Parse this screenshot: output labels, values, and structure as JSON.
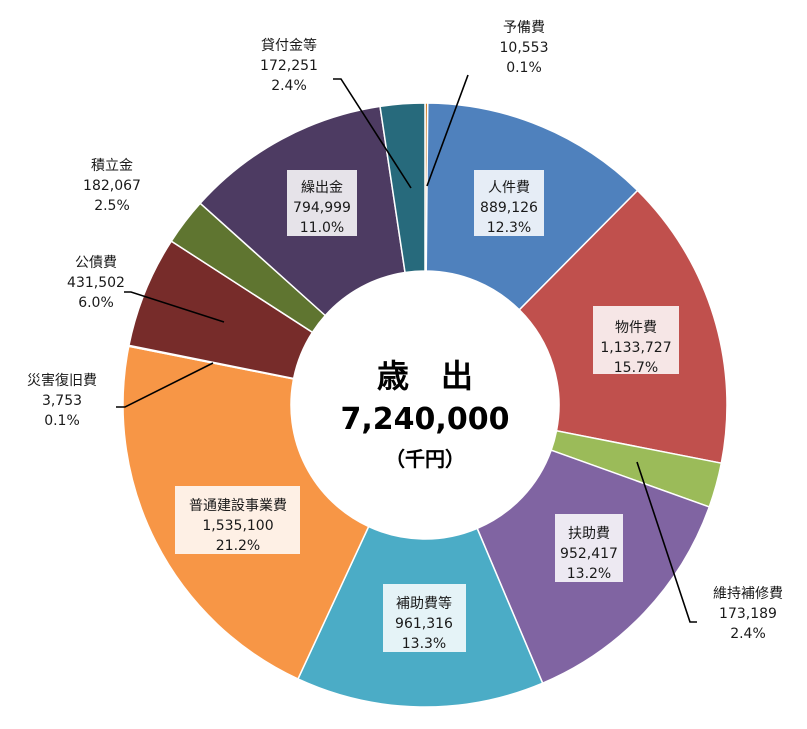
{
  "chart_data": {
    "type": "pie",
    "style": "donut",
    "center": {
      "title": "歳　出",
      "total": "7,240,000",
      "unit": "（千円）"
    },
    "slices": [
      {
        "label": "予備費",
        "value": 10553,
        "value_text": "10,553",
        "percent": "0.1%",
        "color": "#D07E2A"
      },
      {
        "label": "人件費",
        "value": 889126,
        "value_text": "889,126",
        "percent": "12.3%",
        "color": "#4F81BD"
      },
      {
        "label": "物件費",
        "value": 1133727,
        "value_text": "1,133,727",
        "percent": "15.7%",
        "color": "#C0504D"
      },
      {
        "label": "維持補修費",
        "value": 173189,
        "value_text": "173,189",
        "percent": "2.4%",
        "color": "#9BBB59"
      },
      {
        "label": "扶助費",
        "value": 952417,
        "value_text": "952,417",
        "percent": "13.2%",
        "color": "#8064A2"
      },
      {
        "label": "補助費等",
        "value": 961316,
        "value_text": "961,316",
        "percent": "13.3%",
        "color": "#4BACC6"
      },
      {
        "label": "普通建設事業費",
        "value": 1535100,
        "value_text": "1,535,100",
        "percent": "21.2%",
        "color": "#F79646"
      },
      {
        "label": "災害復旧費",
        "value": 3753,
        "value_text": "3,753",
        "percent": "0.1%",
        "color": "#2C4D75"
      },
      {
        "label": "公債費",
        "value": 431502,
        "value_text": "431,502",
        "percent": "6.0%",
        "color": "#772C2A"
      },
      {
        "label": "積立金",
        "value": 182067,
        "value_text": "182,067",
        "percent": "2.5%",
        "color": "#5F7530"
      },
      {
        "label": "繰出金",
        "value": 794999,
        "value_text": "794,999",
        "percent": "11.0%",
        "color": "#4D3B62"
      },
      {
        "label": "貸付金等",
        "value": 172251,
        "value_text": "172,251",
        "percent": "2.4%",
        "color": "#276A7C"
      }
    ]
  }
}
